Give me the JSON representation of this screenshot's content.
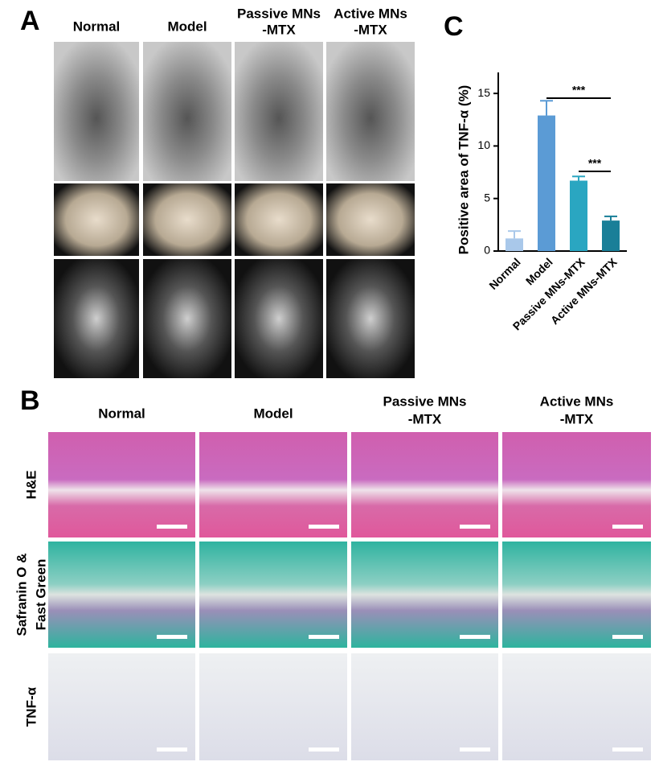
{
  "panels": {
    "A": {
      "label": "A",
      "columns": [
        [
          "Normal"
        ],
        [
          "Model"
        ],
        [
          "Passive MNs",
          "-MTX"
        ],
        [
          "Active MNs",
          "-MTX"
        ]
      ]
    },
    "B": {
      "label": "B",
      "columns": [
        [
          "Normal"
        ],
        [
          "Model"
        ],
        [
          "Passive MNs",
          "-MTX"
        ],
        [
          "Active MNs",
          "-MTX"
        ]
      ],
      "rows": [
        [
          "H&E"
        ],
        [
          "Safranin O &",
          "Fast Green"
        ],
        [
          "TNF-α"
        ]
      ]
    },
    "C": {
      "label": "C"
    }
  },
  "chart_data": {
    "type": "bar",
    "ylabel": "Positive area of TNF-α (%)",
    "categories": [
      "Normal",
      "Model",
      "Passive MNs-MTX",
      "Active MNs-MTX"
    ],
    "values": [
      1.2,
      12.9,
      6.7,
      2.9
    ],
    "errors": [
      0.7,
      1.4,
      0.4,
      0.4
    ],
    "colors": [
      "#a9c8ea",
      "#5b9bd5",
      "#2aa6c1",
      "#1a7f98"
    ],
    "ylim": [
      0,
      17
    ],
    "yticks": [
      0,
      5,
      10,
      15
    ],
    "annotations": [
      "***",
      "***"
    ]
  }
}
